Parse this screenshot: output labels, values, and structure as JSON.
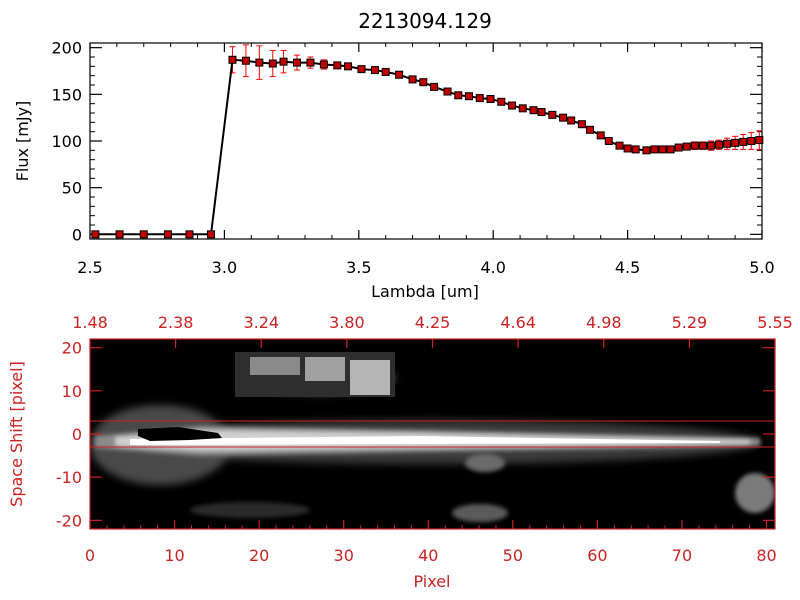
{
  "chart_data": [
    {
      "type": "line",
      "title": "2213094.129",
      "xlabel": "Lambda [um]",
      "ylabel": "Flux [mJy]",
      "xlim": [
        2.5,
        5.0
      ],
      "ylim": [
        -5,
        205
      ],
      "x_ticks": [
        "2.5",
        "3.0",
        "3.5",
        "4.0",
        "4.5",
        "5.0"
      ],
      "y_ticks": [
        "0",
        "50",
        "100",
        "150",
        "200"
      ],
      "line_color": "#000000",
      "marker_color": "#c00000",
      "errorbar_color": "#ff0000",
      "marker": "square",
      "series": [
        {
          "x": [
            2.52,
            2.61,
            2.7,
            2.79,
            2.87,
            2.95,
            3.03,
            3.08,
            3.13,
            3.18,
            3.22,
            3.27,
            3.32,
            3.37,
            3.42,
            3.46,
            3.51,
            3.56,
            3.6,
            3.65,
            3.7,
            3.74,
            3.78,
            3.83,
            3.87,
            3.91,
            3.95,
            3.99,
            4.03,
            4.07,
            4.11,
            4.15,
            4.18,
            4.22,
            4.26,
            4.29,
            4.33,
            4.36,
            4.4,
            4.43,
            4.47,
            4.5,
            4.53,
            4.57,
            4.6,
            4.63,
            4.66,
            4.69,
            4.72,
            4.75,
            4.78,
            4.81,
            4.84,
            4.87,
            4.9,
            4.93,
            4.96,
            4.99
          ],
          "y": [
            0,
            0,
            0,
            0,
            0,
            0,
            187,
            186,
            184,
            183,
            185,
            184,
            184,
            182,
            181,
            180,
            177,
            176,
            174,
            171,
            166,
            163,
            158,
            153,
            149,
            148,
            146,
            145,
            142,
            138,
            135,
            133,
            131,
            128,
            125,
            122,
            118,
            112,
            106,
            100,
            95,
            92,
            91,
            90,
            91,
            91,
            91,
            93,
            94,
            95,
            95,
            95,
            96,
            97,
            98,
            99,
            100,
            101
          ],
          "yerr": [
            0,
            0,
            0,
            0,
            0,
            0,
            14,
            17,
            18,
            14,
            12,
            8,
            6,
            5,
            3,
            3,
            3,
            3,
            3,
            3,
            3,
            3,
            3,
            3,
            3,
            3,
            3,
            3,
            3,
            3,
            3,
            3,
            3,
            3,
            3,
            3,
            3,
            3,
            3,
            3,
            3,
            3,
            3,
            3,
            3,
            3,
            3,
            3,
            3,
            4,
            4,
            5,
            5,
            6,
            7,
            8,
            9,
            10
          ]
        }
      ]
    },
    {
      "type": "heatmap",
      "xlabel": "Pixel",
      "ylabel": "Space Shift [pixel]",
      "xlim": [
        0,
        81
      ],
      "ylim": [
        -22,
        22
      ],
      "x_ticks": [
        "0",
        "10",
        "20",
        "30",
        "40",
        "50",
        "60",
        "70",
        "80"
      ],
      "y_ticks": [
        "20",
        "10",
        "0",
        "-10",
        "-20"
      ],
      "top_axis_ticks": [
        "1.48",
        "2.38",
        "3.24",
        "3.80",
        "4.25",
        "4.64",
        "4.98",
        "5.29",
        "5.55"
      ],
      "colormap": "grayscale",
      "frame_color": "#cc2222",
      "extraction_lines_y": [
        3,
        -3
      ],
      "trace_center_y": -0.5,
      "background_color": "#000000"
    }
  ]
}
